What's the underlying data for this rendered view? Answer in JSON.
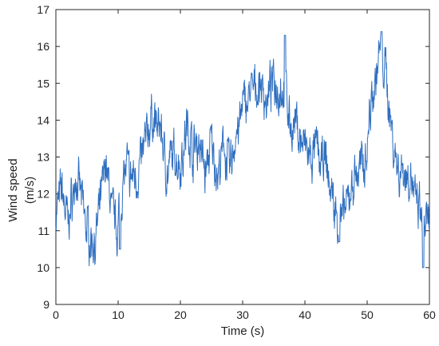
{
  "chart_data": {
    "type": "line",
    "title": "",
    "xlabel": "Time (s)",
    "ylabel_lines": [
      "Wind speed",
      "(m/s)"
    ],
    "xlim": [
      0,
      60
    ],
    "ylim": [
      9,
      17
    ],
    "xticks": [
      0,
      10,
      20,
      30,
      40,
      50,
      60
    ],
    "yticks": [
      9,
      10,
      11,
      12,
      13,
      14,
      15,
      16,
      17
    ],
    "grid": false,
    "legend": "none",
    "line_color": "#2f6fc0",
    "series": [
      {
        "x": [
          0,
          1,
          2,
          3,
          4,
          5,
          6,
          7,
          8,
          9,
          10,
          11,
          12,
          13,
          14,
          15,
          16,
          17,
          18,
          19,
          20,
          21,
          22,
          23,
          24,
          25,
          26,
          27,
          28,
          29,
          30,
          31,
          32,
          33,
          34,
          35,
          36,
          37,
          38,
          39,
          40,
          41,
          42,
          43,
          44,
          45,
          46,
          47,
          48,
          49,
          50,
          51,
          52,
          53,
          54,
          55,
          56,
          57,
          58,
          59,
          60
        ],
        "values": [
          11.4,
          12.1,
          11.3,
          12.3,
          11.9,
          11.1,
          10.7,
          11.2,
          13.0,
          11.6,
          11.2,
          12.8,
          12.3,
          12.6,
          13.1,
          13.9,
          14.0,
          13.7,
          12.5,
          13.0,
          12.9,
          13.8,
          13.2,
          13.5,
          12.7,
          13.3,
          12.4,
          13.1,
          12.8,
          13.6,
          14.2,
          14.7,
          14.8,
          14.9,
          14.5,
          14.9,
          15.0,
          14.6,
          13.8,
          13.6,
          13.2,
          12.7,
          13.1,
          12.8,
          12.2,
          11.4,
          11.3,
          11.7,
          12.5,
          12.6,
          13.6,
          15.1,
          15.7,
          15.2,
          13.8,
          12.7,
          12.6,
          12.4,
          11.5,
          11.1,
          11.0
        ],
        "peaks": [
          {
            "x": 36.8,
            "y": 16.3
          },
          {
            "x": 52.3,
            "y": 16.4
          },
          {
            "x": 10.3,
            "y": 10.5
          },
          {
            "x": 59.0,
            "y": 10.0
          },
          {
            "x": 45.5,
            "y": 10.7
          }
        ]
      }
    ]
  }
}
